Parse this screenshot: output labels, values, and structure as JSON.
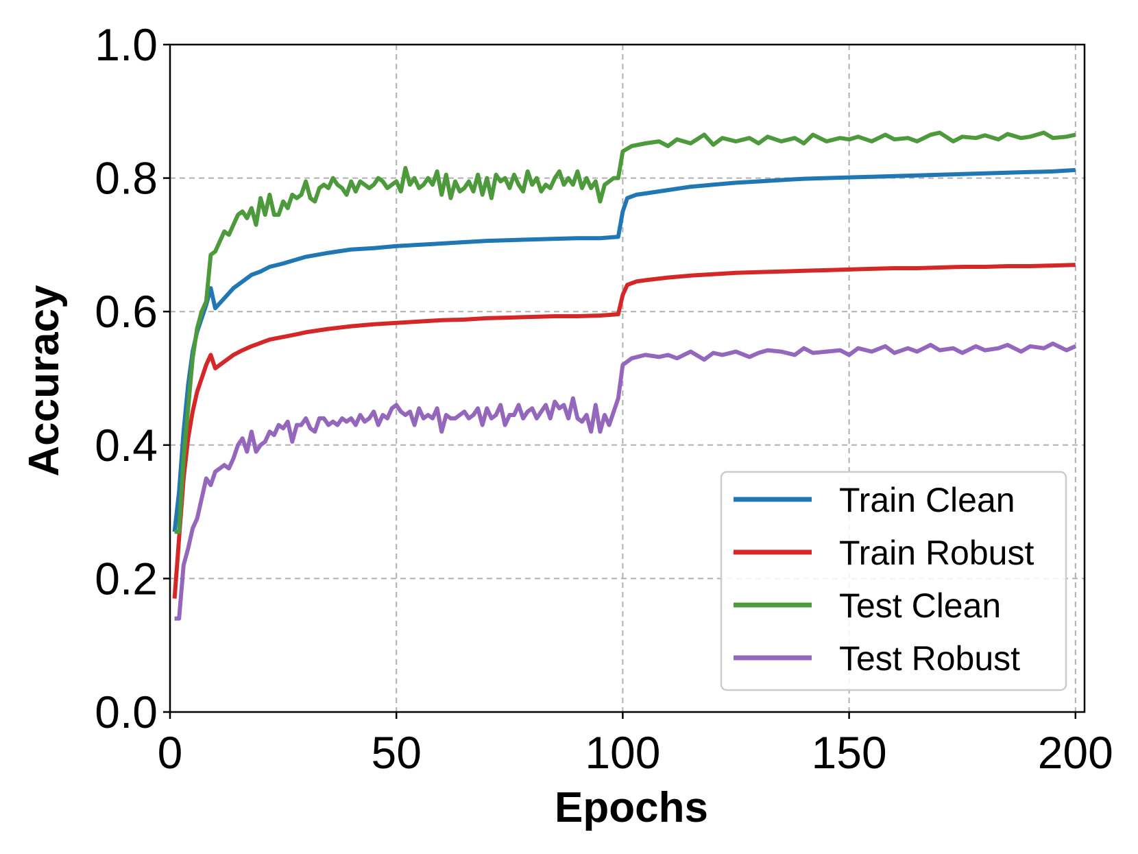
{
  "chart_data": {
    "type": "line",
    "xlabel": "Epochs",
    "ylabel": "Accuracy",
    "xlim": [
      0,
      202
    ],
    "ylim": [
      0.0,
      1.0
    ],
    "xticks": [
      "0",
      "50",
      "100",
      "150",
      "200"
    ],
    "yticks": [
      "0.0",
      "0.2",
      "0.4",
      "0.6",
      "0.8",
      "1.0"
    ],
    "grid": true,
    "legend_position": "lower-right",
    "series": [
      {
        "name": "Train Clean",
        "color": "#1f77b4",
        "x": [
          1,
          2,
          3,
          4,
          5,
          6,
          7,
          8,
          9,
          10,
          12,
          14,
          16,
          18,
          20,
          22,
          25,
          28,
          30,
          35,
          40,
          45,
          50,
          55,
          60,
          65,
          70,
          75,
          80,
          85,
          90,
          95,
          99,
          100,
          101,
          103,
          105,
          110,
          115,
          120,
          125,
          130,
          135,
          140,
          145,
          150,
          155,
          160,
          165,
          170,
          175,
          180,
          185,
          190,
          195,
          200
        ],
        "y": [
          0.27,
          0.33,
          0.42,
          0.49,
          0.54,
          0.57,
          0.59,
          0.61,
          0.635,
          0.605,
          0.62,
          0.635,
          0.645,
          0.655,
          0.66,
          0.667,
          0.672,
          0.678,
          0.682,
          0.688,
          0.693,
          0.695,
          0.698,
          0.7,
          0.702,
          0.704,
          0.706,
          0.707,
          0.708,
          0.709,
          0.71,
          0.71,
          0.712,
          0.75,
          0.77,
          0.775,
          0.777,
          0.782,
          0.787,
          0.79,
          0.793,
          0.795,
          0.797,
          0.799,
          0.8,
          0.801,
          0.802,
          0.803,
          0.804,
          0.805,
          0.806,
          0.807,
          0.808,
          0.809,
          0.81,
          0.812
        ]
      },
      {
        "name": "Train Robust",
        "color": "#d62728",
        "x": [
          1,
          2,
          3,
          4,
          5,
          6,
          7,
          8,
          9,
          10,
          12,
          14,
          16,
          18,
          20,
          22,
          25,
          28,
          30,
          35,
          40,
          45,
          50,
          55,
          60,
          65,
          70,
          75,
          80,
          85,
          90,
          95,
          99,
          100,
          101,
          103,
          105,
          110,
          115,
          120,
          125,
          130,
          135,
          140,
          145,
          150,
          155,
          160,
          165,
          170,
          175,
          180,
          185,
          190,
          195,
          200
        ],
        "y": [
          0.17,
          0.26,
          0.35,
          0.41,
          0.45,
          0.48,
          0.5,
          0.52,
          0.535,
          0.515,
          0.525,
          0.535,
          0.542,
          0.548,
          0.553,
          0.558,
          0.562,
          0.566,
          0.569,
          0.574,
          0.578,
          0.581,
          0.583,
          0.585,
          0.587,
          0.588,
          0.59,
          0.591,
          0.592,
          0.593,
          0.593,
          0.594,
          0.596,
          0.625,
          0.64,
          0.645,
          0.647,
          0.651,
          0.654,
          0.656,
          0.658,
          0.659,
          0.66,
          0.661,
          0.662,
          0.663,
          0.664,
          0.665,
          0.665,
          0.666,
          0.667,
          0.667,
          0.668,
          0.668,
          0.669,
          0.67
        ]
      },
      {
        "name": "Test Clean",
        "color": "#4c9a3c",
        "x": [
          1,
          2,
          3,
          5,
          6,
          7,
          8,
          9,
          10,
          11,
          12,
          13,
          14,
          15,
          16,
          17,
          18,
          19,
          20,
          21,
          22,
          23,
          24,
          25,
          26,
          27,
          28,
          29,
          30,
          31,
          32,
          33,
          34,
          35,
          36,
          37,
          38,
          39,
          40,
          41,
          42,
          43,
          44,
          45,
          46,
          47,
          48,
          49,
          50,
          51,
          52,
          53,
          54,
          55,
          56,
          57,
          58,
          59,
          60,
          61,
          62,
          63,
          64,
          65,
          66,
          67,
          68,
          69,
          70,
          71,
          72,
          73,
          74,
          75,
          76,
          77,
          78,
          79,
          80,
          81,
          82,
          83,
          84,
          85,
          86,
          87,
          88,
          89,
          90,
          91,
          92,
          93,
          94,
          95,
          96,
          97,
          98,
          99,
          100,
          102,
          105,
          108,
          110,
          112,
          115,
          118,
          120,
          122,
          125,
          128,
          130,
          132,
          135,
          138,
          140,
          142,
          145,
          148,
          150,
          152,
          155,
          158,
          160,
          163,
          165,
          168,
          170,
          173,
          175,
          178,
          180,
          183,
          185,
          188,
          190,
          193,
          195,
          198,
          200
        ],
        "y": [
          0.27,
          0.27,
          0.38,
          0.53,
          0.575,
          0.6,
          0.615,
          0.685,
          0.69,
          0.705,
          0.72,
          0.715,
          0.73,
          0.745,
          0.75,
          0.74,
          0.755,
          0.73,
          0.77,
          0.745,
          0.775,
          0.745,
          0.745,
          0.765,
          0.755,
          0.775,
          0.77,
          0.775,
          0.795,
          0.77,
          0.765,
          0.785,
          0.79,
          0.785,
          0.8,
          0.79,
          0.785,
          0.775,
          0.795,
          0.78,
          0.795,
          0.79,
          0.785,
          0.79,
          0.8,
          0.795,
          0.785,
          0.79,
          0.795,
          0.78,
          0.815,
          0.79,
          0.8,
          0.785,
          0.79,
          0.8,
          0.79,
          0.81,
          0.775,
          0.805,
          0.77,
          0.795,
          0.78,
          0.785,
          0.795,
          0.78,
          0.805,
          0.775,
          0.8,
          0.77,
          0.805,
          0.795,
          0.8,
          0.785,
          0.805,
          0.79,
          0.78,
          0.81,
          0.79,
          0.8,
          0.78,
          0.79,
          0.785,
          0.8,
          0.81,
          0.79,
          0.8,
          0.79,
          0.81,
          0.785,
          0.8,
          0.785,
          0.795,
          0.765,
          0.79,
          0.795,
          0.8,
          0.8,
          0.84,
          0.848,
          0.852,
          0.855,
          0.848,
          0.858,
          0.852,
          0.865,
          0.85,
          0.86,
          0.855,
          0.86,
          0.852,
          0.862,
          0.855,
          0.86,
          0.852,
          0.865,
          0.855,
          0.86,
          0.858,
          0.862,
          0.855,
          0.865,
          0.858,
          0.86,
          0.855,
          0.865,
          0.868,
          0.855,
          0.862,
          0.86,
          0.864,
          0.858,
          0.866,
          0.86,
          0.862,
          0.868,
          0.86,
          0.862,
          0.865
        ]
      },
      {
        "name": "Test Robust",
        "color": "#9467bd",
        "x": [
          1,
          2,
          3,
          4,
          5,
          6,
          7,
          8,
          9,
          10,
          11,
          12,
          13,
          14,
          15,
          16,
          17,
          18,
          19,
          20,
          21,
          22,
          23,
          24,
          25,
          26,
          27,
          28,
          29,
          30,
          31,
          32,
          33,
          34,
          35,
          36,
          37,
          38,
          39,
          40,
          41,
          42,
          43,
          44,
          45,
          46,
          47,
          48,
          49,
          50,
          51,
          52,
          53,
          54,
          55,
          56,
          57,
          58,
          59,
          60,
          61,
          62,
          63,
          64,
          65,
          66,
          67,
          68,
          69,
          70,
          71,
          72,
          73,
          74,
          75,
          76,
          77,
          78,
          79,
          80,
          81,
          82,
          83,
          84,
          85,
          86,
          87,
          88,
          89,
          90,
          91,
          92,
          93,
          94,
          95,
          96,
          97,
          98,
          99,
          100,
          102,
          105,
          108,
          110,
          112,
          115,
          118,
          120,
          122,
          125,
          128,
          130,
          132,
          135,
          138,
          140,
          142,
          145,
          148,
          150,
          152,
          155,
          158,
          160,
          163,
          165,
          168,
          170,
          173,
          175,
          178,
          180,
          183,
          185,
          188,
          190,
          193,
          195,
          198,
          200
        ],
        "y": [
          0.14,
          0.14,
          0.22,
          0.245,
          0.275,
          0.29,
          0.32,
          0.35,
          0.34,
          0.36,
          0.365,
          0.37,
          0.365,
          0.38,
          0.4,
          0.41,
          0.39,
          0.42,
          0.39,
          0.4,
          0.405,
          0.42,
          0.415,
          0.43,
          0.425,
          0.435,
          0.405,
          0.43,
          0.43,
          0.44,
          0.425,
          0.42,
          0.44,
          0.44,
          0.43,
          0.435,
          0.43,
          0.44,
          0.435,
          0.44,
          0.43,
          0.445,
          0.435,
          0.44,
          0.45,
          0.43,
          0.445,
          0.44,
          0.455,
          0.46,
          0.45,
          0.445,
          0.45,
          0.43,
          0.455,
          0.44,
          0.445,
          0.44,
          0.455,
          0.42,
          0.445,
          0.44,
          0.44,
          0.445,
          0.45,
          0.44,
          0.445,
          0.455,
          0.43,
          0.455,
          0.44,
          0.445,
          0.46,
          0.43,
          0.445,
          0.445,
          0.46,
          0.44,
          0.45,
          0.455,
          0.44,
          0.45,
          0.46,
          0.44,
          0.465,
          0.455,
          0.46,
          0.44,
          0.47,
          0.44,
          0.435,
          0.445,
          0.42,
          0.46,
          0.42,
          0.445,
          0.43,
          0.45,
          0.47,
          0.52,
          0.53,
          0.535,
          0.532,
          0.535,
          0.53,
          0.54,
          0.528,
          0.538,
          0.535,
          0.54,
          0.532,
          0.538,
          0.542,
          0.54,
          0.535,
          0.545,
          0.538,
          0.54,
          0.542,
          0.535,
          0.545,
          0.54,
          0.548,
          0.538,
          0.545,
          0.54,
          0.55,
          0.542,
          0.545,
          0.538,
          0.548,
          0.542,
          0.545,
          0.55,
          0.54,
          0.548,
          0.545,
          0.552,
          0.542,
          0.548
        ]
      }
    ]
  }
}
